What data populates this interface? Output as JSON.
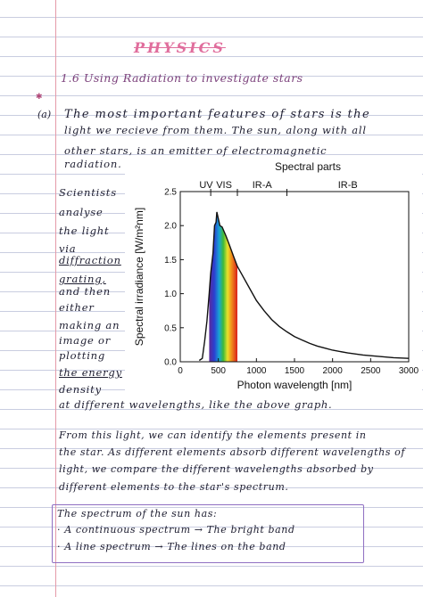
{
  "notes": {
    "title": "PHYSICS",
    "heading": "1.6 Using Radiation to investigate stars",
    "para_label": "(a)",
    "intro_lines": [
      "The most important features of stars is the",
      "light we recieve from them. The sun, along with all",
      "other stars, is an emitter of electromagnetic",
      "radiation."
    ],
    "side_lines": [
      "Scientists",
      "analyse",
      "the light",
      "via",
      "diffraction",
      "grating,",
      "and then",
      "either",
      "making an",
      "image or",
      "plotting",
      "the energy",
      "density"
    ],
    "after_chart": "at different wavelengths, like the above graph.",
    "para2_lines": [
      "From this light, we can identify the elements present in",
      "the star. As different elements absorb different wavelengths of",
      "light, we compare the different wavelengths absorbed by",
      "different elements to the star's spectrum."
    ],
    "box_lines": [
      "The spectrum of the sun has:",
      "· A continuous spectrum → The bright band",
      "· A line spectrum → The lines on the band"
    ]
  },
  "chart_data": {
    "type": "line",
    "title": "Spectral parts",
    "xlabel": "Photon wavelength [nm]",
    "ylabel": "Spectral irradiance [W/m²nm]",
    "xlim": [
      0,
      3000
    ],
    "ylim": [
      0,
      2.5
    ],
    "xticks": [
      0,
      500,
      1000,
      1500,
      2000,
      2500,
      3000
    ],
    "yticks": [
      0.0,
      0.5,
      1.0,
      1.5,
      2.0,
      2.5
    ],
    "xtick_labels": [
      "0",
      "500",
      "1000",
      "1500",
      "2000",
      "2500",
      "3000"
    ],
    "ytick_labels": [
      "0.0",
      "0.5",
      "1.0",
      "1.5",
      "2.0",
      "2.5"
    ],
    "regions": [
      {
        "label": "UV",
        "from": 280,
        "to": 400
      },
      {
        "label": "VIS",
        "from": 400,
        "to": 750
      },
      {
        "label": "IR-A",
        "from": 750,
        "to": 1400
      },
      {
        "label": "IR-B",
        "from": 1400,
        "to": 3000
      }
    ],
    "visible_band": {
      "from": 380,
      "to": 750
    },
    "x": [
      250,
      290,
      320,
      350,
      380,
      400,
      430,
      450,
      470,
      480,
      500,
      520,
      550,
      600,
      650,
      700,
      750,
      800,
      900,
      1000,
      1100,
      1200,
      1300,
      1400,
      1500,
      1600,
      1700,
      1800,
      1900,
      2000,
      2200,
      2400,
      2600,
      2800,
      3000
    ],
    "series": [
      {
        "values": [
          0.02,
          0.05,
          0.3,
          0.6,
          1.0,
          1.3,
          1.6,
          2.0,
          2.05,
          2.2,
          2.1,
          2.0,
          1.98,
          1.85,
          1.7,
          1.55,
          1.4,
          1.3,
          1.1,
          0.9,
          0.75,
          0.62,
          0.52,
          0.44,
          0.37,
          0.32,
          0.27,
          0.23,
          0.2,
          0.17,
          0.13,
          0.1,
          0.08,
          0.06,
          0.05
        ]
      }
    ],
    "grid": false,
    "colors": {
      "line": "#111111"
    }
  }
}
